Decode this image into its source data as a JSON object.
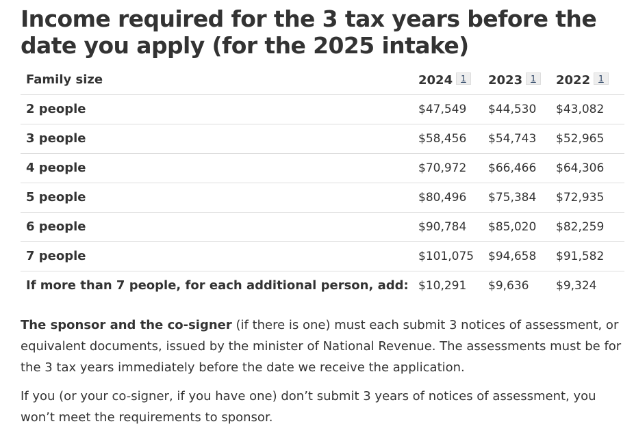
{
  "heading": "Income required for the 3 tax years before the date you apply (for the 2025 intake)",
  "table": {
    "family_size_header": "Family size",
    "years": [
      {
        "label": "2024",
        "footnote": "1"
      },
      {
        "label": "2023",
        "footnote": "1"
      },
      {
        "label": "2022",
        "footnote": "1"
      }
    ],
    "rows": [
      {
        "label": "2 people",
        "values": [
          "$47,549",
          "$44,530",
          "$43,082"
        ]
      },
      {
        "label": "3 people",
        "values": [
          "$58,456",
          "$54,743",
          "$52,965"
        ]
      },
      {
        "label": "4 people",
        "values": [
          "$70,972",
          "$66,466",
          "$64,306"
        ]
      },
      {
        "label": "5 people",
        "values": [
          "$80,496",
          "$75,384",
          "$72,935"
        ]
      },
      {
        "label": "6 people",
        "values": [
          "$90,784",
          "$85,020",
          "$82,259"
        ]
      },
      {
        "label": "7 people",
        "values": [
          "$101,075",
          "$94,658",
          "$91,582"
        ]
      },
      {
        "label": "If more than 7 people, for each additional person, add:",
        "values": [
          "$10,291",
          "$9,636",
          "$9,324"
        ]
      }
    ]
  },
  "paragraphs": {
    "p1_strong": "The sponsor and the co-signer",
    "p1_rest": " (if there is one) must each submit 3 notices of assessment, or equivalent documents, issued by the minister of National Revenue. The assessments must be for the 3 tax years immediately before the date we receive the application.",
    "p2": "If you (or your co-signer, if you have one) don’t submit 3 years of notices of assessment, you won’t meet the requirements to sponsor."
  }
}
